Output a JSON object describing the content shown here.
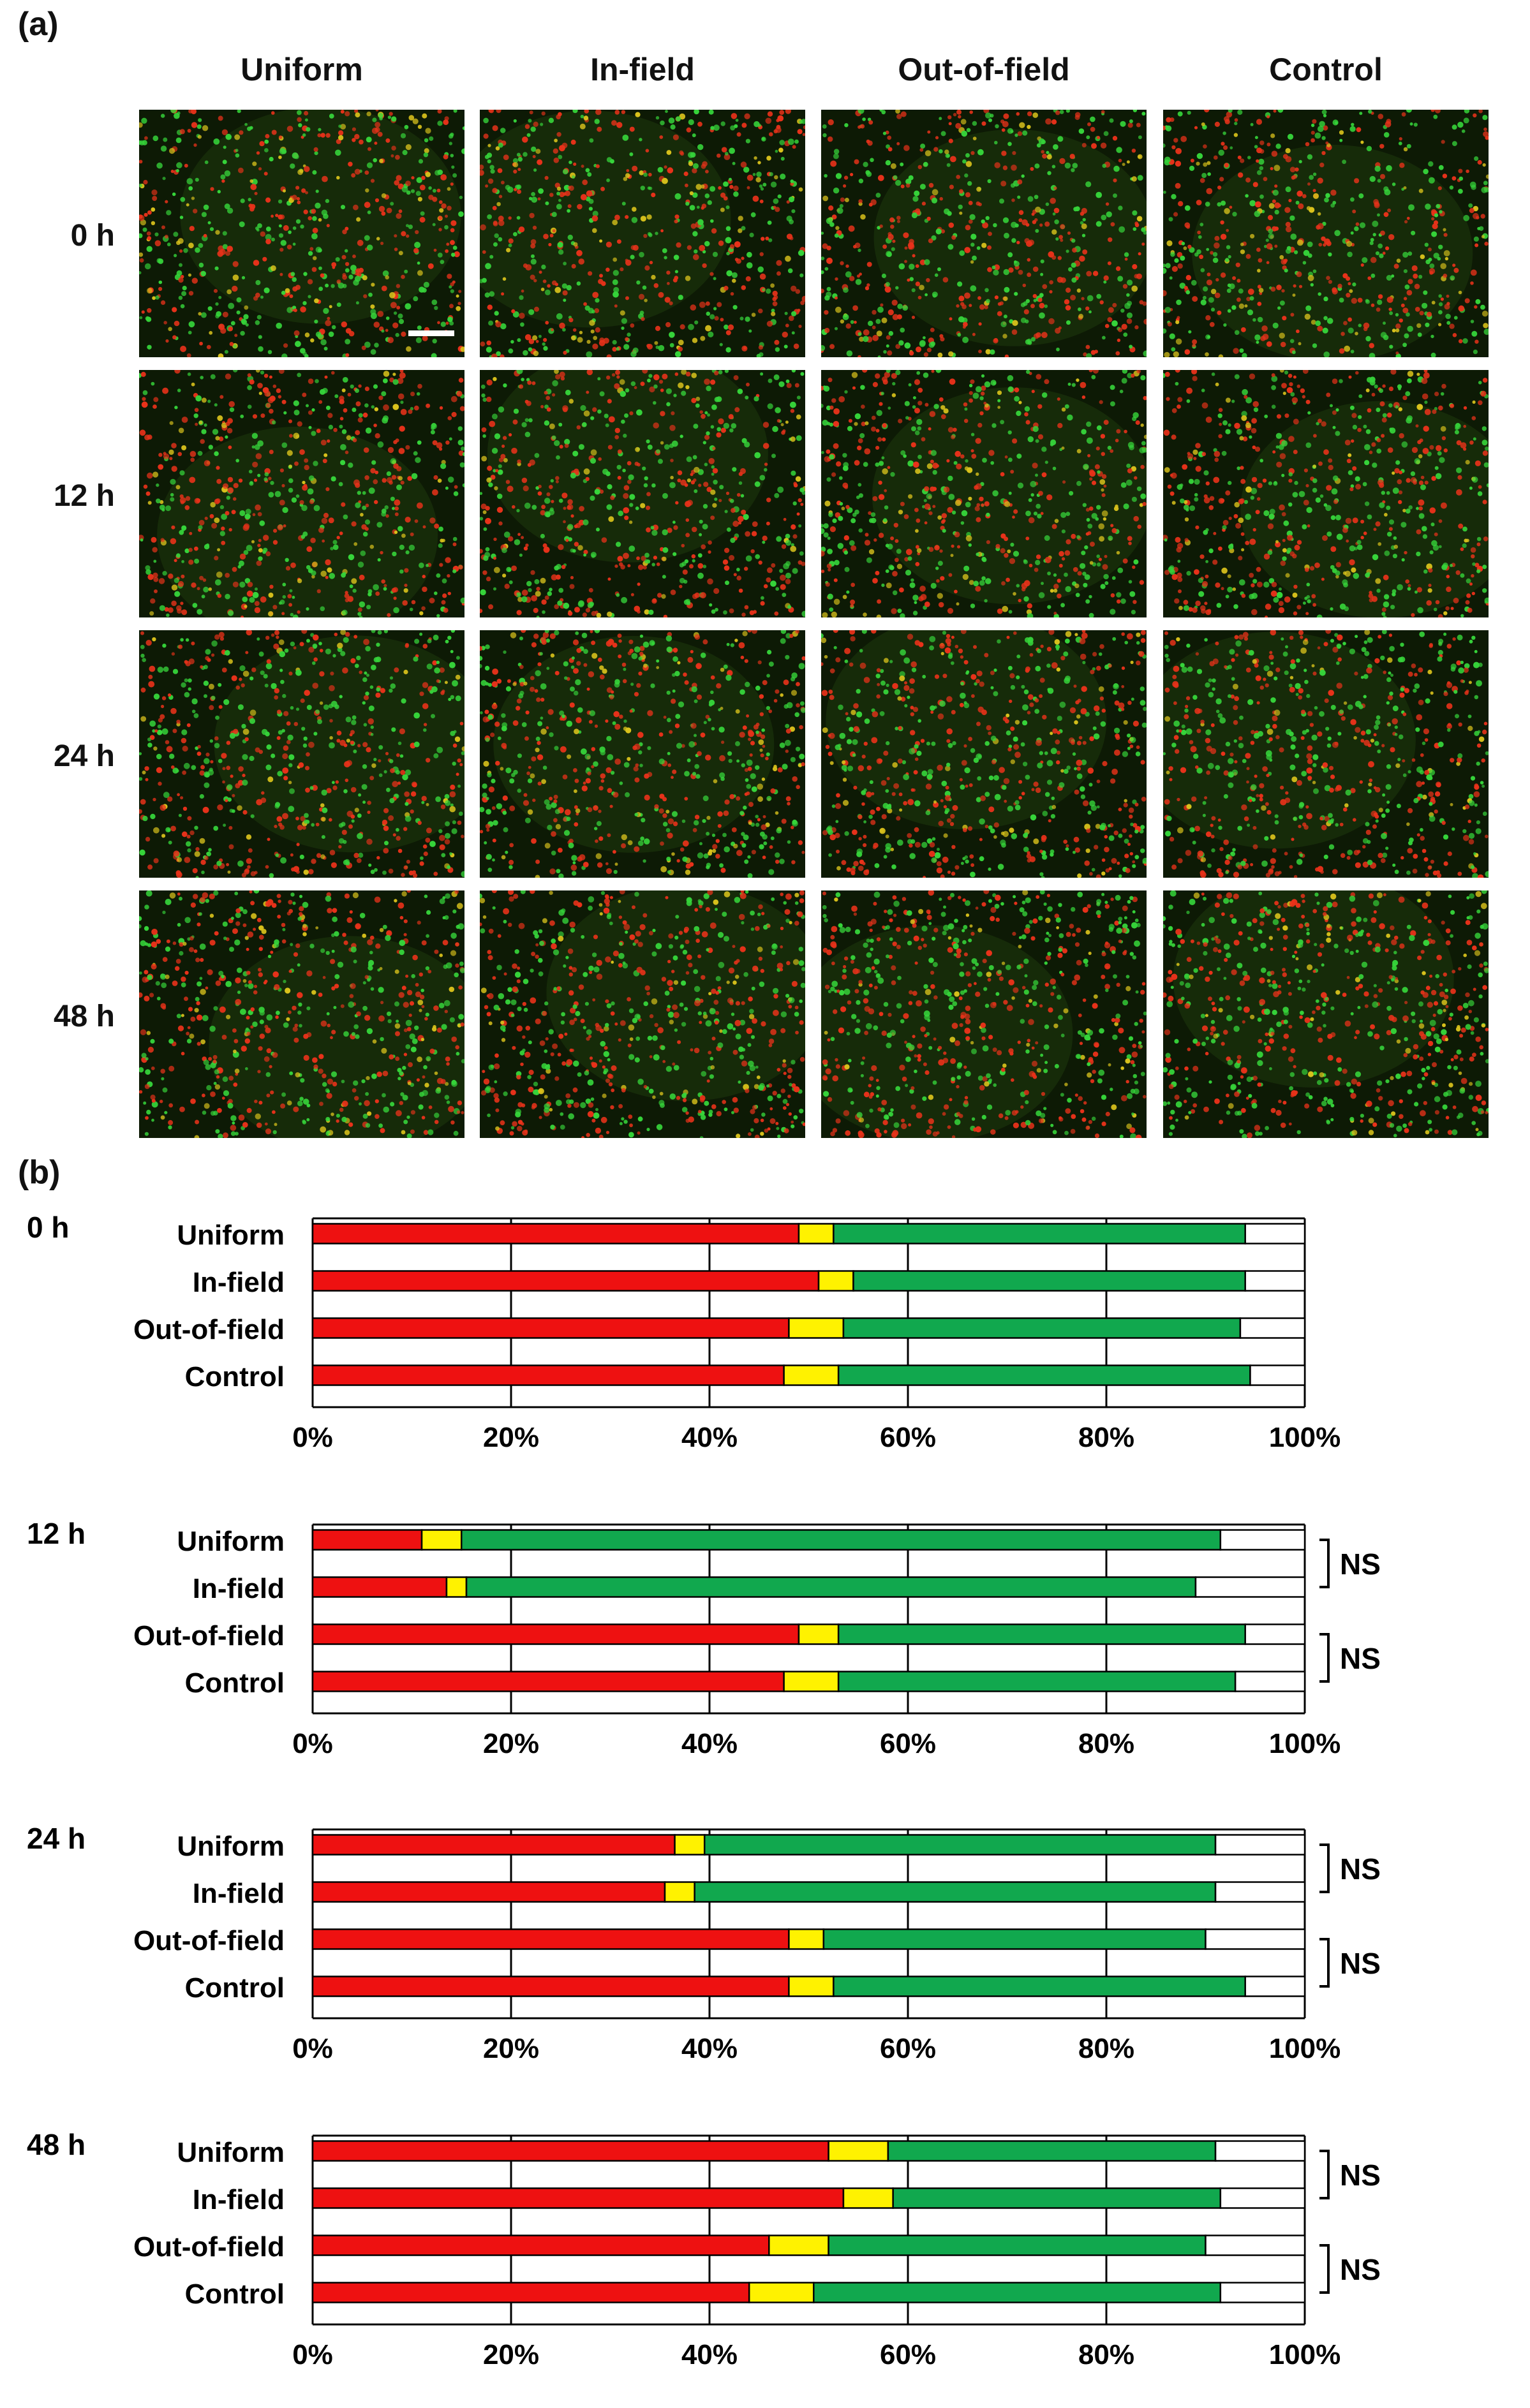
{
  "panel_a": {
    "label": "(a)",
    "columns": [
      "Uniform",
      "In-field",
      "Out-of-field",
      "Control"
    ],
    "rows": [
      "0 h",
      "12 h",
      "24 h",
      "48 h"
    ]
  },
  "panel_b": {
    "label": "(b)"
  },
  "colors": {
    "segment_1": "#ee1111",
    "segment_2": "#fff200",
    "segment_3": "#11a84e",
    "segment_4": "#ffffff",
    "micro_background": "#0d1a05",
    "micro_red": "#e8321a",
    "micro_green": "#36d43a",
    "micro_yellow": "#d9c21c"
  },
  "chart_data": [
    {
      "type": "bar",
      "orientation": "horizontal",
      "stacked": true,
      "group_label": "0 h",
      "categories": [
        "Uniform",
        "In-field",
        "Out-of-field",
        "Control"
      ],
      "xlim": [
        0,
        100
      ],
      "xticks": [
        "0%",
        "20%",
        "40%",
        "60%",
        "80%",
        "100%"
      ],
      "grid": true,
      "series": [
        {
          "color": "#ee1111",
          "values": [
            49,
            51,
            48,
            47.5
          ]
        },
        {
          "color": "#fff200",
          "values": [
            3.5,
            3.5,
            5.5,
            5.5
          ]
        },
        {
          "color": "#11a84e",
          "values": [
            41.5,
            39.5,
            40,
            41.5
          ]
        },
        {
          "color": "#ffffff",
          "values": [
            6,
            6,
            6.5,
            5.5
          ]
        }
      ],
      "annotations": []
    },
    {
      "type": "bar",
      "orientation": "horizontal",
      "stacked": true,
      "group_label": "12 h",
      "categories": [
        "Uniform",
        "In-field",
        "Out-of-field",
        "Control"
      ],
      "xlim": [
        0,
        100
      ],
      "xticks": [
        "0%",
        "20%",
        "40%",
        "60%",
        "80%",
        "100%"
      ],
      "grid": true,
      "series": [
        {
          "color": "#ee1111",
          "values": [
            11,
            13.5,
            49,
            47.5
          ]
        },
        {
          "color": "#fff200",
          "values": [
            4,
            2,
            4,
            5.5
          ]
        },
        {
          "color": "#11a84e",
          "values": [
            76.5,
            73.5,
            41,
            40
          ]
        },
        {
          "color": "#ffffff",
          "values": [
            8.5,
            11,
            6,
            7
          ]
        }
      ],
      "annotations": [
        {
          "text": "NS",
          "rows": [
            "Uniform",
            "In-field"
          ]
        },
        {
          "text": "NS",
          "rows": [
            "Out-of-field",
            "Control"
          ]
        }
      ]
    },
    {
      "type": "bar",
      "orientation": "horizontal",
      "stacked": true,
      "group_label": "24 h",
      "categories": [
        "Uniform",
        "In-field",
        "Out-of-field",
        "Control"
      ],
      "xlim": [
        0,
        100
      ],
      "xticks": [
        "0%",
        "20%",
        "40%",
        "60%",
        "80%",
        "100%"
      ],
      "grid": true,
      "series": [
        {
          "color": "#ee1111",
          "values": [
            36.5,
            35.5,
            48,
            48
          ]
        },
        {
          "color": "#fff200",
          "values": [
            3,
            3,
            3.5,
            4.5
          ]
        },
        {
          "color": "#11a84e",
          "values": [
            51.5,
            52.5,
            38.5,
            41.5
          ]
        },
        {
          "color": "#ffffff",
          "values": [
            9,
            9,
            10,
            6
          ]
        }
      ],
      "annotations": [
        {
          "text": "NS",
          "rows": [
            "Uniform",
            "In-field"
          ]
        },
        {
          "text": "NS",
          "rows": [
            "Out-of-field",
            "Control"
          ]
        }
      ]
    },
    {
      "type": "bar",
      "orientation": "horizontal",
      "stacked": true,
      "group_label": "48 h",
      "categories": [
        "Uniform",
        "In-field",
        "Out-of-field",
        "Control"
      ],
      "xlim": [
        0,
        100
      ],
      "xticks": [
        "0%",
        "20%",
        "40%",
        "60%",
        "80%",
        "100%"
      ],
      "grid": true,
      "series": [
        {
          "color": "#ee1111",
          "values": [
            52,
            53.5,
            46,
            44
          ]
        },
        {
          "color": "#fff200",
          "values": [
            6,
            5,
            6,
            6.5
          ]
        },
        {
          "color": "#11a84e",
          "values": [
            33,
            33,
            38,
            41
          ]
        },
        {
          "color": "#ffffff",
          "values": [
            9,
            8.5,
            10,
            8.5
          ]
        }
      ],
      "annotations": [
        {
          "text": "NS",
          "rows": [
            "Uniform",
            "In-field"
          ]
        },
        {
          "text": "NS",
          "rows": [
            "Out-of-field",
            "Control"
          ]
        }
      ]
    }
  ]
}
